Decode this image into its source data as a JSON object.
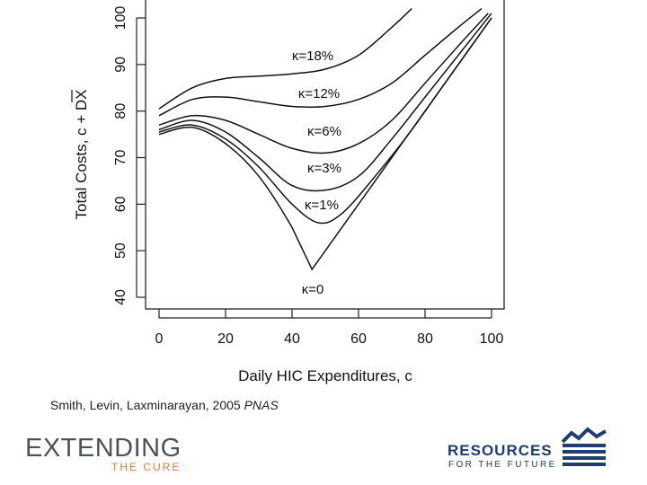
{
  "chart_data": {
    "type": "line",
    "xlabel": "Daily HIC Expenditures, c",
    "ylabel": "Total Costs, c + DX",
    "xlim": [
      0,
      100
    ],
    "ylim": [
      40,
      100
    ],
    "xticks": [
      "0",
      "20",
      "40",
      "60",
      "80",
      "100"
    ],
    "yticks": [
      "40",
      "50",
      "60",
      "70",
      "80",
      "90",
      "100"
    ],
    "grid": false,
    "series": [
      {
        "name": "κ=0",
        "x": [
          0,
          10,
          20,
          30,
          40,
          46,
          50,
          60,
          70,
          80,
          90,
          100
        ],
        "y": [
          75,
          76.5,
          73,
          66,
          55,
          46,
          50,
          60,
          70,
          80,
          90,
          100
        ]
      },
      {
        "name": "κ=1%",
        "x": [
          0,
          10,
          20,
          30,
          40,
          48,
          55,
          65,
          75,
          85,
          95,
          100
        ],
        "y": [
          75.5,
          77,
          74,
          68,
          60,
          56,
          58,
          66,
          75,
          85,
          95,
          100
        ]
      },
      {
        "name": "κ=3%",
        "x": [
          0,
          10,
          20,
          30,
          40,
          50,
          60,
          70,
          80,
          90,
          100
        ],
        "y": [
          76,
          78,
          75.5,
          70,
          64,
          63,
          66,
          74,
          83,
          92,
          101
        ]
      },
      {
        "name": "κ=6%",
        "x": [
          0,
          10,
          20,
          30,
          40,
          50,
          60,
          70,
          80,
          90,
          99
        ],
        "y": [
          77,
          79,
          78,
          75,
          72,
          71,
          73,
          78,
          86,
          94,
          101
        ]
      },
      {
        "name": "κ=12%",
        "x": [
          0,
          10,
          20,
          30,
          40,
          50,
          60,
          70,
          80,
          90,
          97
        ],
        "y": [
          79,
          82.5,
          83,
          82,
          81,
          81,
          82.5,
          86,
          92,
          98,
          102
        ]
      },
      {
        "name": "κ=18%",
        "x": [
          0,
          10,
          20,
          30,
          40,
          50,
          60,
          70,
          76
        ],
        "y": [
          80.5,
          85,
          87,
          87.5,
          88,
          89,
          92,
          98,
          102
        ]
      }
    ],
    "annotations": [
      "κ=18%",
      "κ=12%",
      "κ=6%",
      "κ=3%",
      "κ=1%",
      "κ=0"
    ]
  },
  "citation": {
    "authors": "Smith, Levin, Laxminarayan, 2005 ",
    "journal": "PNAS"
  },
  "logos": {
    "left": {
      "main": "EXTENDING",
      "sub": "THE CURE",
      "accent": "#e07a3a"
    },
    "right": {
      "main": "RESOURCES",
      "sub": "FOR THE FUTURE",
      "accent": "#1f3d6e"
    }
  }
}
